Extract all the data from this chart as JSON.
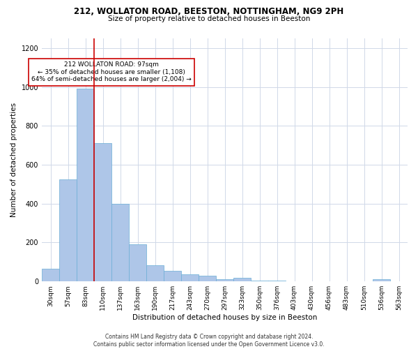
{
  "title1": "212, WOLLATON ROAD, BEESTON, NOTTINGHAM, NG9 2PH",
  "title2": "Size of property relative to detached houses in Beeston",
  "xlabel": "Distribution of detached houses by size in Beeston",
  "ylabel": "Number of detached properties",
  "categories": [
    "30sqm",
    "57sqm",
    "83sqm",
    "110sqm",
    "137sqm",
    "163sqm",
    "190sqm",
    "217sqm",
    "243sqm",
    "270sqm",
    "297sqm",
    "323sqm",
    "350sqm",
    "376sqm",
    "403sqm",
    "430sqm",
    "456sqm",
    "483sqm",
    "510sqm",
    "536sqm",
    "563sqm"
  ],
  "values": [
    65,
    525,
    990,
    710,
    400,
    190,
    85,
    55,
    38,
    28,
    13,
    17,
    5,
    3,
    2,
    2,
    2,
    1,
    0,
    10,
    1
  ],
  "bar_color": "#aec6e8",
  "bar_edge_color": "#6aaed6",
  "vline_color": "#cc0000",
  "annotation_text": "212 WOLLATON ROAD: 97sqm\n← 35% of detached houses are smaller (1,108)\n64% of semi-detached houses are larger (2,004) →",
  "annotation_box_color": "#ffffff",
  "annotation_box_edge": "#cc0000",
  "ylim": [
    0,
    1250
  ],
  "yticks": [
    0,
    200,
    400,
    600,
    800,
    1000,
    1200
  ],
  "footer": "Contains HM Land Registry data © Crown copyright and database right 2024.\nContains public sector information licensed under the Open Government Licence v3.0.",
  "bg_color": "#ffffff",
  "grid_color": "#d0d8e8"
}
